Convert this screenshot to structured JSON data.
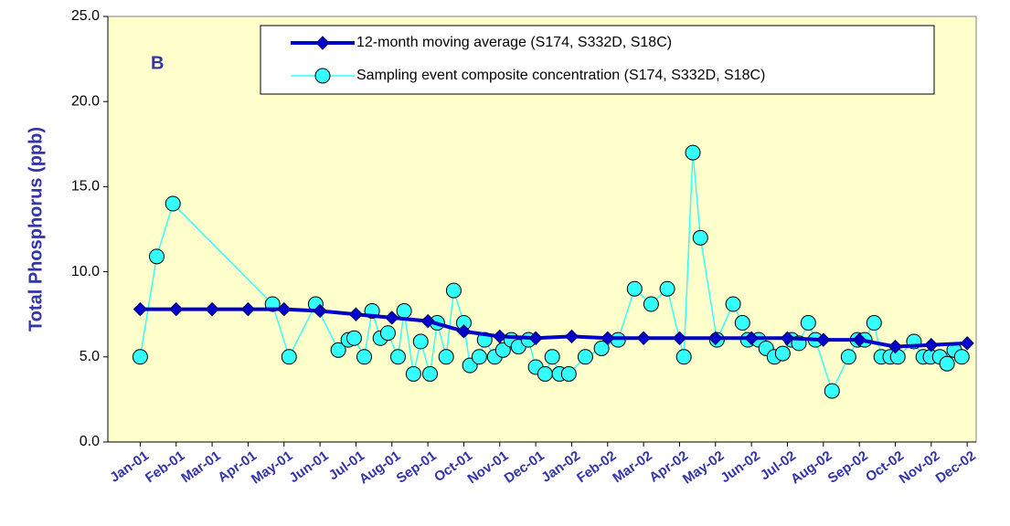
{
  "chart_data": {
    "type": "line",
    "annotation": "B",
    "ylabel": "Total Phosphorus (ppb)",
    "ylim": [
      0,
      25
    ],
    "yticks": [
      {
        "value": 0,
        "label": "0.0"
      },
      {
        "value": 5,
        "label": "5.0"
      },
      {
        "value": 10,
        "label": "10.0"
      },
      {
        "value": 15,
        "label": "15.0"
      },
      {
        "value": 20,
        "label": "20.0"
      },
      {
        "value": 25,
        "label": "25.0"
      }
    ],
    "xlim": [
      -0.9,
      23.25
    ],
    "xticks": [
      {
        "value": 0,
        "label": "Jan-01"
      },
      {
        "value": 1,
        "label": "Feb-01"
      },
      {
        "value": 2,
        "label": "Mar-01"
      },
      {
        "value": 3,
        "label": "Apr-01"
      },
      {
        "value": 4,
        "label": "May-01"
      },
      {
        "value": 5,
        "label": "Jun-01"
      },
      {
        "value": 6,
        "label": "Jul-01"
      },
      {
        "value": 7,
        "label": "Aug-01"
      },
      {
        "value": 8,
        "label": "Sep-01"
      },
      {
        "value": 9,
        "label": "Oct-01"
      },
      {
        "value": 10,
        "label": "Nov-01"
      },
      {
        "value": 11,
        "label": "Dec-01"
      },
      {
        "value": 12,
        "label": "Jan-02"
      },
      {
        "value": 13,
        "label": "Feb-02"
      },
      {
        "value": 14,
        "label": "Mar-02"
      },
      {
        "value": 15,
        "label": "Apr-02"
      },
      {
        "value": 16,
        "label": "May-02"
      },
      {
        "value": 17,
        "label": "Jun-02"
      },
      {
        "value": 18,
        "label": "Jul-02"
      },
      {
        "value": 19,
        "label": "Aug-02"
      },
      {
        "value": 20,
        "label": "Sep-02"
      },
      {
        "value": 21,
        "label": "Oct-02"
      },
      {
        "value": 22,
        "label": "Nov-02"
      },
      {
        "value": 23,
        "label": "Dec-02"
      }
    ],
    "series": [
      {
        "name": "12-month moving average (S174, S332D, S18C)",
        "color": "#0000cc",
        "marker": "diamond",
        "x": [
          0,
          1,
          2,
          3,
          4,
          5,
          6,
          7,
          8,
          9,
          10,
          11,
          12,
          13,
          14,
          15,
          16,
          17,
          18,
          19,
          20,
          21,
          22,
          23
        ],
        "values": [
          7.8,
          7.8,
          7.8,
          7.8,
          7.8,
          7.7,
          7.5,
          7.3,
          7.1,
          6.5,
          6.2,
          6.1,
          6.2,
          6.1,
          6.1,
          6.1,
          6.1,
          6.1,
          6.1,
          6.0,
          6.0,
          5.6,
          5.7,
          5.8
        ]
      },
      {
        "name": "Sampling event composite concentration (S174, S332D, S18C)",
        "color": "#33ffff",
        "marker": "circle",
        "x": [
          0,
          0.46,
          0.91,
          3.68,
          4.14,
          4.88,
          5.51,
          5.79,
          5.95,
          6.23,
          6.45,
          6.68,
          6.89,
          7.17,
          7.34,
          7.6,
          7.8,
          8.06,
          8.26,
          8.51,
          8.72,
          9.0,
          9.17,
          9.43,
          9.58,
          9.86,
          10.09,
          10.32,
          10.52,
          10.8,
          11.0,
          11.26,
          11.46,
          11.66,
          11.92,
          12.38,
          12.83,
          13.29,
          13.75,
          14.21,
          14.66,
          15.12,
          15.37,
          15.58,
          16.04,
          16.49,
          16.75,
          16.9,
          17.2,
          17.41,
          17.64,
          17.87,
          18.12,
          18.32,
          18.58,
          18.78,
          19.24,
          19.7,
          19.95,
          20.15,
          20.41,
          20.61,
          20.86,
          21.07,
          21.52,
          21.78,
          21.98,
          22.24,
          22.44,
          22.64,
          22.85
        ],
        "values": [
          5.0,
          10.9,
          14.0,
          8.1,
          5.0,
          8.1,
          5.4,
          6.0,
          6.1,
          5.0,
          7.7,
          6.1,
          6.4,
          5.0,
          7.7,
          4.0,
          5.9,
          4.0,
          7.0,
          5.0,
          8.9,
          7.0,
          4.5,
          5.0,
          6.0,
          5.0,
          5.4,
          6.0,
          5.6,
          6.0,
          4.4,
          4.0,
          5.0,
          4.0,
          4.0,
          5.0,
          5.5,
          6.0,
          9.0,
          8.1,
          9.0,
          5.0,
          17.0,
          12.0,
          6.0,
          8.1,
          7.0,
          6.0,
          6.0,
          5.5,
          5.0,
          5.2,
          6.0,
          5.8,
          7.0,
          6.0,
          3.0,
          5.0,
          6.0,
          6.0,
          7.0,
          5.0,
          5.0,
          5.0,
          5.9,
          5.0,
          5.0,
          5.0,
          4.6,
          5.4,
          5.0
        ]
      }
    ]
  }
}
